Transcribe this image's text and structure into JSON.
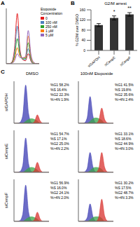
{
  "panel_labels": [
    "A",
    "B",
    "C"
  ],
  "column_headers": [
    "DMSO",
    "100nM Etoposide"
  ],
  "row_labels": [
    "siGAPDH",
    "siCenpE",
    "siCenpF"
  ],
  "chart_data": [
    {
      "type": "line",
      "legend_title": "Etoposide Concentration",
      "legend": "upper right",
      "tick_labels": false,
      "x": [
        0,
        8,
        16,
        24,
        32,
        40,
        48,
        56,
        64,
        72,
        80,
        88,
        96
      ],
      "xlim": [
        0,
        96
      ],
      "ylim": [
        0,
        110
      ],
      "series": [
        {
          "name": "0",
          "color": "#e41a1c",
          "values": [
            0,
            0,
            3,
            30,
            100,
            28,
            8,
            6,
            20,
            5,
            0,
            0,
            0
          ]
        },
        {
          "name": "100 nM",
          "color": "#4f81bd",
          "values": [
            0,
            0,
            2,
            22,
            75,
            22,
            9,
            8,
            30,
            7,
            0,
            0,
            0
          ]
        },
        {
          "name": "250 nM",
          "color": "#2ca02c",
          "values": [
            0,
            0,
            2,
            15,
            50,
            18,
            10,
            10,
            42,
            10,
            1,
            0,
            0
          ]
        },
        {
          "name": "1 µM",
          "color": "#ff7f0e",
          "values": [
            0,
            0,
            1,
            10,
            32,
            15,
            12,
            12,
            55,
            14,
            2,
            0,
            0
          ]
        },
        {
          "name": "5 µM",
          "color": "#9467bd",
          "values": [
            0,
            0,
            1,
            6,
            20,
            12,
            12,
            14,
            66,
            18,
            3,
            0,
            0
          ]
        }
      ]
    },
    {
      "type": "bar",
      "title": "G2/M arrest",
      "y_label": "% G2/M over DMSO",
      "categories": [
        "siGAPDH",
        "siCenpE",
        "siCenpF"
      ],
      "values": [
        100,
        128,
        142
      ],
      "errors": [
        6,
        8,
        7
      ],
      "color": "#333333",
      "ylim": [
        0,
        160
      ],
      "yticks": [
        0,
        40,
        80,
        120,
        160
      ],
      "annotations": [
        {
          "category": "siCenpE",
          "text": "*"
        },
        {
          "category": "siCenpF",
          "text": "**"
        }
      ]
    },
    {
      "type": "area",
      "tick_labels": false,
      "x": [
        0,
        8,
        16,
        24,
        32,
        40,
        48,
        56,
        64,
        72,
        80,
        88,
        96
      ],
      "xlim": [
        0,
        96
      ],
      "ylim": [
        0,
        110
      ],
      "series": [
        {
          "color": "#3b3bb3",
          "values": [
            0,
            0,
            2,
            20,
            100,
            25,
            2,
            0,
            0,
            0,
            0,
            0,
            0
          ]
        },
        {
          "color": "#3aa64a",
          "values": [
            0,
            0,
            0,
            0,
            5,
            10,
            12,
            10,
            6,
            0,
            0,
            0,
            0
          ]
        },
        {
          "color": "#d8322e",
          "values": [
            0,
            0,
            0,
            0,
            0,
            0,
            0,
            4,
            22,
            6,
            0,
            0,
            0
          ]
        }
      ],
      "annotations": [
        "%G1 58.2%",
        "%S 16.4%",
        "%G2 22.3%",
        "%>4N 1.9%"
      ]
    },
    {
      "type": "area",
      "tick_labels": false,
      "x": [
        0,
        8,
        16,
        24,
        32,
        40,
        48,
        56,
        64,
        72,
        80,
        88,
        96
      ],
      "xlim": [
        0,
        96
      ],
      "ylim": [
        0,
        110
      ],
      "series": [
        {
          "color": "#3b3bb3",
          "values": [
            0,
            0,
            1,
            14,
            70,
            18,
            1,
            0,
            0,
            0,
            0,
            0,
            0
          ]
        },
        {
          "color": "#3aa64a",
          "values": [
            0,
            0,
            0,
            0,
            5,
            12,
            14,
            12,
            8,
            0,
            0,
            0,
            0
          ]
        },
        {
          "color": "#d8322e",
          "values": [
            0,
            0,
            0,
            0,
            0,
            0,
            0,
            8,
            40,
            10,
            1,
            0,
            0
          ]
        }
      ],
      "annotations": [
        "%G1 41.5%",
        "%S 19.8%",
        "%G2 35.6%",
        "%>4N 2.4%"
      ]
    },
    {
      "type": "area",
      "tick_labels": false,
      "x": [
        0,
        8,
        16,
        24,
        32,
        40,
        48,
        56,
        64,
        72,
        80,
        88,
        96
      ],
      "xlim": [
        0,
        96
      ],
      "ylim": [
        0,
        110
      ],
      "series": [
        {
          "color": "#3b3bb3",
          "values": [
            0,
            0,
            2,
            18,
            90,
            22,
            2,
            0,
            0,
            0,
            0,
            0,
            0
          ]
        },
        {
          "color": "#3aa64a",
          "values": [
            0,
            0,
            0,
            0,
            5,
            11,
            13,
            11,
            6,
            0,
            0,
            0,
            0
          ]
        },
        {
          "color": "#d8322e",
          "values": [
            0,
            0,
            0,
            0,
            0,
            0,
            0,
            5,
            26,
            7,
            0,
            0,
            0
          ]
        }
      ],
      "annotations": [
        "%G1 54.7%",
        "%S 17.1%",
        "%G2 25.0%",
        "%>4N 2.2%"
      ]
    },
    {
      "type": "area",
      "tick_labels": false,
      "x": [
        0,
        8,
        16,
        24,
        32,
        40,
        48,
        56,
        64,
        72,
        80,
        88,
        96
      ],
      "xlim": [
        0,
        96
      ],
      "ylim": [
        0,
        110
      ],
      "series": [
        {
          "color": "#3b3bb3",
          "values": [
            0,
            0,
            1,
            10,
            52,
            14,
            1,
            0,
            0,
            0,
            0,
            0,
            0
          ]
        },
        {
          "color": "#3aa64a",
          "values": [
            0,
            0,
            0,
            0,
            4,
            11,
            13,
            12,
            8,
            0,
            0,
            0,
            0
          ]
        },
        {
          "color": "#d8322e",
          "values": [
            0,
            0,
            0,
            0,
            0,
            0,
            0,
            10,
            52,
            13,
            1,
            0,
            0
          ]
        }
      ],
      "annotations": [
        "%G1 33.1%",
        "%S 18.6%",
        "%G2 44.9%",
        "%>4N 3.0%"
      ]
    },
    {
      "type": "area",
      "tick_labels": false,
      "x": [
        0,
        8,
        16,
        24,
        32,
        40,
        48,
        56,
        64,
        72,
        80,
        88,
        96
      ],
      "xlim": [
        0,
        96
      ],
      "ylim": [
        0,
        110
      ],
      "series": [
        {
          "color": "#3b3bb3",
          "values": [
            0,
            0,
            2,
            19,
            95,
            24,
            2,
            0,
            0,
            0,
            0,
            0,
            0
          ]
        },
        {
          "color": "#3aa64a",
          "values": [
            0,
            0,
            0,
            0,
            5,
            10,
            12,
            10,
            6,
            0,
            0,
            0,
            0
          ]
        },
        {
          "color": "#d8322e",
          "values": [
            0,
            0,
            0,
            0,
            0,
            0,
            0,
            4,
            24,
            6,
            0,
            0,
            0
          ]
        }
      ],
      "annotations": [
        "%G1 56.9%",
        "%S 16.0%",
        "%G2 24.1%",
        "%>4N 2.0%"
      ]
    },
    {
      "type": "area",
      "tick_labels": false,
      "x": [
        0,
        8,
        16,
        24,
        32,
        40,
        48,
        56,
        64,
        72,
        80,
        88,
        96
      ],
      "xlim": [
        0,
        96
      ],
      "ylim": [
        0,
        110
      ],
      "series": [
        {
          "color": "#3b3bb3",
          "values": [
            0,
            0,
            1,
            9,
            46,
            12,
            1,
            0,
            0,
            0,
            0,
            0,
            0
          ]
        },
        {
          "color": "#3aa64a",
          "values": [
            0,
            0,
            0,
            0,
            4,
            10,
            12,
            12,
            8,
            0,
            0,
            0,
            0
          ]
        },
        {
          "color": "#d8322e",
          "values": [
            0,
            0,
            0,
            0,
            0,
            0,
            0,
            11,
            58,
            14,
            1,
            0,
            0
          ]
        }
      ],
      "annotations": [
        "%G1 30.2%",
        "%S 17.5%",
        "%G2 48.7%",
        "%>4N 3.3%"
      ]
    }
  ]
}
